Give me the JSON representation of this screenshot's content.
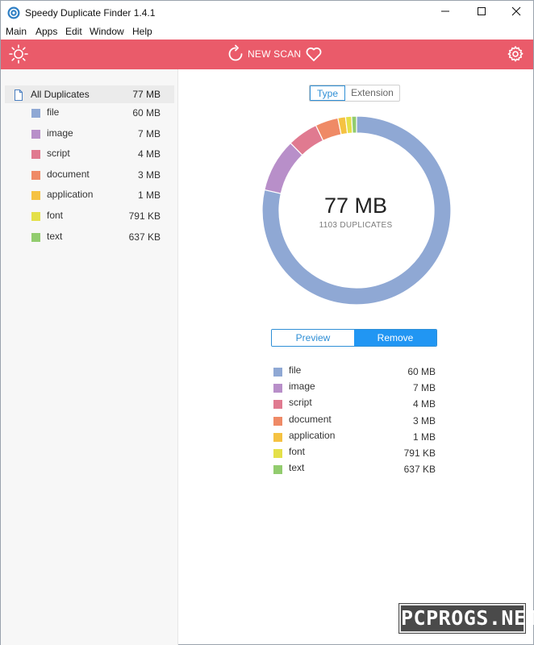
{
  "window": {
    "title": "Speedy Duplicate Finder 1.4.1"
  },
  "menu": [
    "Main",
    "Apps",
    "Edit",
    "Window",
    "Help"
  ],
  "toolbar": {
    "new_scan_label": "NEW SCAN",
    "bar_color": "#ea5b6a"
  },
  "sidebar": {
    "all_label": "All Duplicates",
    "all_size": "77 MB",
    "items": [
      {
        "label": "file",
        "size": "60 MB",
        "color": "#8fa8d4"
      },
      {
        "label": "image",
        "size": "7 MB",
        "color": "#b88fc9"
      },
      {
        "label": "script",
        "size": "4 MB",
        "color": "#e07a90"
      },
      {
        "label": "document",
        "size": "3 MB",
        "color": "#ef8a66"
      },
      {
        "label": "application",
        "size": "1 MB",
        "color": "#f5c242"
      },
      {
        "label": "font",
        "size": "791 KB",
        "color": "#e4e049"
      },
      {
        "label": "text",
        "size": "637 KB",
        "color": "#92cc6e"
      }
    ]
  },
  "view_toggle": {
    "type_label": "Type",
    "extension_label": "Extension",
    "selected": "Type"
  },
  "summary": {
    "total_size": "77 MB",
    "duplicates_label": "1103 DUPLICATES"
  },
  "action_toggle": {
    "preview_label": "Preview",
    "remove_label": "Remove",
    "selected": "Remove"
  },
  "chart_data": {
    "type": "pie",
    "categories": [
      "file",
      "image",
      "script",
      "document",
      "application",
      "font",
      "text"
    ],
    "values": [
      60,
      7,
      4,
      3,
      1,
      0.791,
      0.637
    ],
    "colors": [
      "#8fa8d4",
      "#b88fc9",
      "#e07a90",
      "#ef8a66",
      "#f5c242",
      "#e4e049",
      "#92cc6e"
    ]
  },
  "legend": {
    "items": [
      {
        "label": "file",
        "size": "60 MB",
        "color": "#8fa8d4"
      },
      {
        "label": "image",
        "size": "7 MB",
        "color": "#b88fc9"
      },
      {
        "label": "script",
        "size": "4 MB",
        "color": "#e07a90"
      },
      {
        "label": "document",
        "size": "3 MB",
        "color": "#ef8a66"
      },
      {
        "label": "application",
        "size": "1 MB",
        "color": "#f5c242"
      },
      {
        "label": "font",
        "size": "791 KB",
        "color": "#e4e049"
      },
      {
        "label": "text",
        "size": "637 KB",
        "color": "#92cc6e"
      }
    ]
  },
  "watermark": "PCPROGS.NET",
  "icons": [
    "app-icon",
    "minimize-icon",
    "maximize-icon",
    "close-icon",
    "sun-icon",
    "refresh-icon",
    "heart-icon",
    "gear-icon",
    "document-icon"
  ]
}
